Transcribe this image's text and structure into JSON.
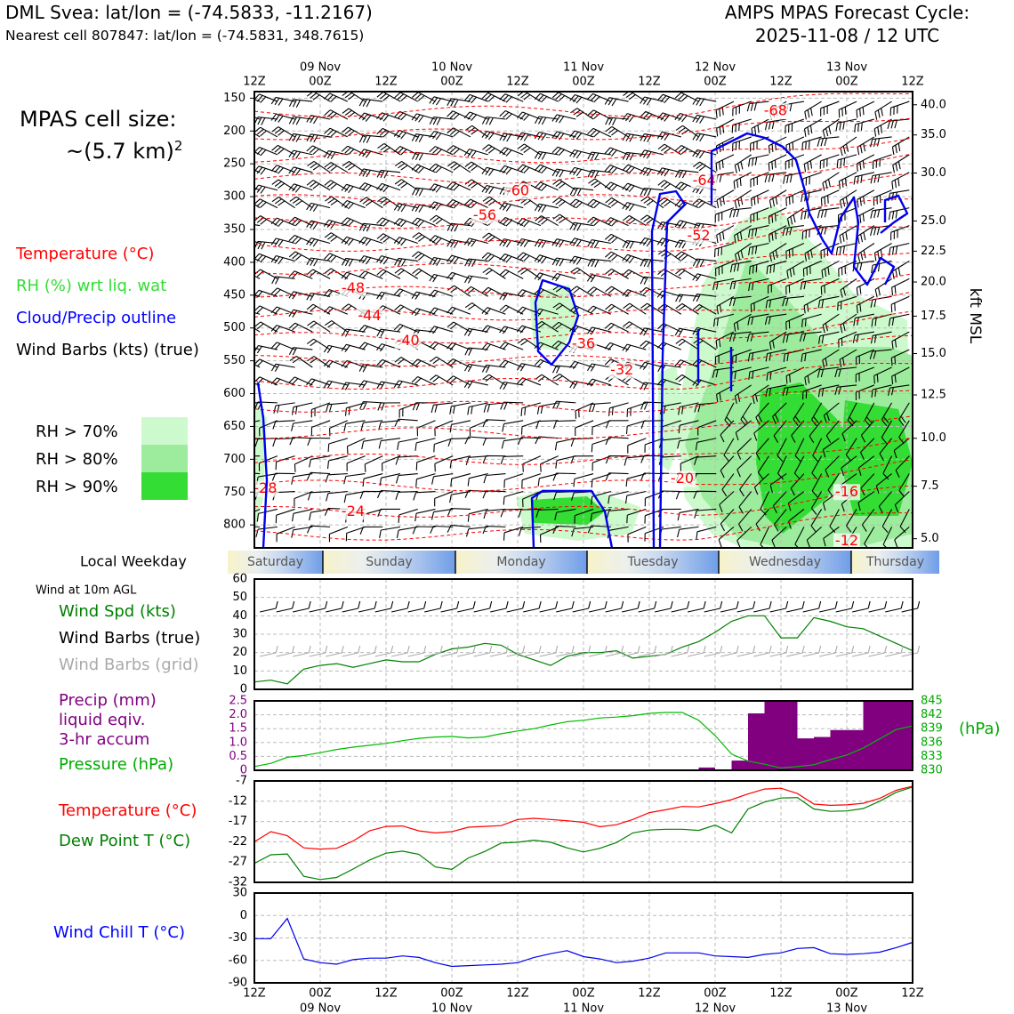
{
  "header": {
    "station_line": "DML Svea: lat/lon = (-74.5833, -11.2167)",
    "cell_line": "Nearest cell 807847: lat/lon = (-74.5831, 348.7615)",
    "forecast_line1": "AMPS MPAS Forecast Cycle:",
    "forecast_line2": "2025-11-08 / 12 UTC"
  },
  "left_panel": {
    "cell_size_line1": "MPAS cell size:",
    "cell_size_line2": "~(5.7 km)",
    "cell_size_exp": "2",
    "legend": [
      {
        "text": "Temperature (°C)",
        "color": "#ff0000"
      },
      {
        "text": "RH (%) wrt liq. wat",
        "color": "#33dd33"
      },
      {
        "text": "Cloud/Precip outline",
        "color": "#0000ff"
      },
      {
        "text": "Wind Barbs (kts) (true)",
        "color": "#000000"
      }
    ],
    "rh_legend": [
      {
        "text": "RH > 70%",
        "color": "#ccfacc"
      },
      {
        "text": "RH > 80%",
        "color": "#9deb9d"
      },
      {
        "text": "RH > 90%",
        "color": "#33dd33"
      }
    ]
  },
  "time_axis": {
    "date_labels": [
      "09 Nov",
      "10 Nov",
      "11 Nov",
      "12 Nov",
      "13 Nov"
    ],
    "hour_labels": [
      "12Z",
      "00Z",
      "12Z",
      "00Z",
      "12Z",
      "00Z",
      "12Z",
      "00Z",
      "12Z",
      "00Z",
      "12Z"
    ]
  },
  "weekday": {
    "title": "Local Weekday",
    "days": [
      "Saturday",
      "Sunday",
      "Monday",
      "Tuesday",
      "Wednesday",
      "Thursday"
    ]
  },
  "wind_panel": {
    "header": "Wind at 10m AGL",
    "legend": [
      {
        "text": "Wind Spd (kts)",
        "color": "#008000"
      },
      {
        "text": "Wind Barbs (true)",
        "color": "#000000"
      },
      {
        "text": "Wind Barbs (grid)",
        "color": "#aaaaaa"
      }
    ]
  },
  "precip_panel": {
    "legend": [
      {
        "text": "Precip (mm)",
        "color": "#800080"
      },
      {
        "text": "liquid eqiv.",
        "color": "#800080"
      },
      {
        "text": "3-hr accum",
        "color": "#800080"
      },
      {
        "text": "Pressure (hPa)",
        "color": "#00aa00"
      }
    ],
    "right_unit": "(hPa)"
  },
  "temp_panel": {
    "legend": [
      {
        "text": "Temperature (°C)",
        "color": "#ff0000"
      },
      {
        "text": "Dew Point T (°C)",
        "color": "#008000"
      }
    ]
  },
  "chill_panel": {
    "legend": [
      {
        "text": "Wind Chill T (°C)",
        "color": "#0000ff"
      }
    ]
  },
  "chart_data": [
    {
      "type": "heatmap",
      "name": "time-height cross section",
      "x_hours_from_start": [
        0,
        120
      ],
      "y_pressure_ticks": [
        150,
        200,
        250,
        300,
        350,
        400,
        450,
        500,
        550,
        600,
        650,
        700,
        750,
        800
      ],
      "ylim": [
        140,
        835
      ],
      "right_ticks": [
        "40.0",
        "35.0",
        "30.0",
        "25.0",
        "22.5",
        "20.0",
        "17.5",
        "15.0",
        "12.5",
        "10.0",
        "7.5",
        "5.0"
      ],
      "right_tick_pressures": [
        160,
        206,
        264,
        337,
        383,
        430,
        482,
        539,
        602,
        668,
        741,
        821
      ],
      "ylabel_right": "kft MSL",
      "temperature_labels": [
        {
          "text": "-68",
          "hour": 95,
          "p": 170
        },
        {
          "text": "-64",
          "hour": 82,
          "p": 276
        },
        {
          "text": "-60",
          "hour": 48,
          "p": 292
        },
        {
          "text": "-56",
          "hour": 42,
          "p": 329
        },
        {
          "text": "-52",
          "hour": 81,
          "p": 360
        },
        {
          "text": "-48",
          "hour": 18,
          "p": 440
        },
        {
          "text": "-44",
          "hour": 21,
          "p": 482
        },
        {
          "text": "-40",
          "hour": 28,
          "p": 520
        },
        {
          "text": "-36",
          "hour": 60,
          "p": 525
        },
        {
          "text": "-32",
          "hour": 67,
          "p": 565
        },
        {
          "text": "-28",
          "hour": 2,
          "p": 745
        },
        {
          "text": "-24",
          "hour": 18,
          "p": 780
        },
        {
          "text": "-20",
          "hour": 78,
          "p": 730
        },
        {
          "text": "-16",
          "hour": 108,
          "p": 750
        },
        {
          "text": "-12",
          "hour": 108,
          "p": 825
        }
      ]
    },
    {
      "type": "line",
      "name": "10m wind speed",
      "ylim": [
        0,
        60
      ],
      "y_ticks": [
        0,
        10,
        20,
        30,
        40,
        50,
        60
      ],
      "x_hours": [
        0,
        3,
        6,
        9,
        12,
        15,
        18,
        21,
        24,
        27,
        30,
        33,
        36,
        39,
        42,
        45,
        48,
        51,
        54,
        57,
        60,
        63,
        66,
        69,
        72,
        75,
        78,
        81,
        84,
        87,
        90,
        93,
        96,
        99,
        102,
        105,
        108,
        111,
        114,
        117,
        120
      ],
      "values": [
        4,
        5,
        3,
        11,
        13,
        14,
        12,
        14,
        16,
        15,
        15,
        19,
        22,
        23,
        25,
        24,
        19,
        16,
        13,
        18,
        20,
        20,
        21,
        17,
        18,
        19,
        23,
        26,
        31,
        37,
        40,
        40,
        28,
        28,
        39,
        37,
        34,
        33,
        29,
        25,
        21
      ]
    },
    {
      "type": "bar",
      "name": "3-hr precip",
      "ylim": [
        0,
        2.5
      ],
      "y_ticks": [
        0,
        0.5,
        1.0,
        1.5,
        2.0,
        2.5
      ],
      "bars": [
        {
          "start": 81,
          "end": 84,
          "value": 0.1
        },
        {
          "start": 87,
          "end": 90,
          "value": 0.35
        },
        {
          "start": 90,
          "end": 93,
          "value": 2.05
        },
        {
          "start": 93,
          "end": 99,
          "value": 2.5
        },
        {
          "start": 99,
          "end": 102,
          "value": 1.15
        },
        {
          "start": 102,
          "end": 105,
          "value": 1.2
        },
        {
          "start": 105,
          "end": 111,
          "value": 1.45
        },
        {
          "start": 111,
          "end": 120,
          "value": 2.5
        }
      ]
    },
    {
      "type": "line",
      "name": "surface pressure",
      "ylim": [
        830,
        845
      ],
      "y_ticks": [
        830,
        833,
        836,
        839,
        842,
        845
      ],
      "x_hours": [
        0,
        3,
        6,
        9,
        12,
        15,
        18,
        21,
        24,
        27,
        30,
        33,
        36,
        39,
        42,
        45,
        48,
        51,
        54,
        57,
        60,
        63,
        66,
        69,
        72,
        75,
        78,
        81,
        84,
        87,
        90,
        93,
        96,
        99,
        102,
        105,
        108,
        111,
        114,
        117,
        120
      ],
      "values": [
        830.8,
        831.5,
        832.8,
        833.2,
        833.8,
        834.5,
        835.0,
        835.4,
        835.8,
        836.4,
        836.9,
        837.2,
        837.3,
        837.0,
        837.2,
        837.9,
        838.5,
        839.0,
        839.8,
        840.5,
        840.8,
        841.3,
        841.5,
        841.8,
        842.3,
        842.5,
        842.5,
        840.8,
        837.5,
        833.5,
        832.0,
        831.3,
        830.5,
        830.8,
        831.2,
        832.3,
        833.3,
        834.8,
        836.8,
        838.8,
        839.6
      ]
    },
    {
      "type": "line",
      "name": "temperature and dew point",
      "ylim": [
        -32,
        -7
      ],
      "y_ticks": [
        -32,
        -27,
        -22,
        -17,
        -12,
        -7
      ],
      "x_hours": [
        0,
        3,
        6,
        9,
        12,
        15,
        18,
        21,
        24,
        27,
        30,
        33,
        36,
        39,
        42,
        45,
        48,
        51,
        54,
        57,
        60,
        63,
        66,
        69,
        72,
        75,
        78,
        81,
        84,
        87,
        90,
        93,
        96,
        99,
        102,
        105,
        108,
        111,
        114,
        117,
        120
      ],
      "series": [
        {
          "name": "Temperature (°C)",
          "color": "#ff0000",
          "values": [
            -22.0,
            -19.5,
            -20.5,
            -23.5,
            -23.8,
            -23.6,
            -21.8,
            -19.3,
            -18.2,
            -18.1,
            -19.3,
            -19.8,
            -19.5,
            -18.4,
            -18.2,
            -18.0,
            -16.5,
            -16.2,
            -16.5,
            -16.8,
            -17.2,
            -18.3,
            -17.8,
            -16.5,
            -14.8,
            -14.1,
            -13.3,
            -13.4,
            -12.6,
            -11.6,
            -10.2,
            -9.0,
            -8.8,
            -10.1,
            -12.7,
            -13.0,
            -12.9,
            -12.5,
            -11.3,
            -9.3,
            -8.3
          ]
        },
        {
          "name": "Dew Point T (°C)",
          "color": "#008000",
          "values": [
            -27.3,
            -25.2,
            -25.0,
            -30.5,
            -31.3,
            -30.8,
            -28.7,
            -26.5,
            -24.8,
            -24.3,
            -25.1,
            -28.2,
            -28.8,
            -26.0,
            -24.4,
            -22.3,
            -22.1,
            -21.6,
            -22.1,
            -23.5,
            -24.5,
            -23.6,
            -22.2,
            -19.8,
            -19.1,
            -18.9,
            -18.9,
            -19.2,
            -17.9,
            -19.8,
            -13.9,
            -12.2,
            -11.2,
            -11.1,
            -13.9,
            -14.5,
            -14.4,
            -13.8,
            -12.0,
            -9.8,
            -8.5
          ]
        }
      ]
    },
    {
      "type": "line",
      "name": "wind chill",
      "ylim": [
        -90,
        30
      ],
      "y_ticks": [
        -90,
        -60,
        -30,
        0,
        30
      ],
      "x_hours": [
        0,
        3,
        6,
        9,
        12,
        15,
        18,
        21,
        24,
        27,
        30,
        33,
        36,
        39,
        42,
        45,
        48,
        51,
        54,
        57,
        60,
        63,
        66,
        69,
        72,
        75,
        78,
        81,
        84,
        87,
        90,
        93,
        96,
        99,
        102,
        105,
        108,
        111,
        114,
        117,
        120
      ],
      "values": [
        -31,
        -31,
        -4,
        -58,
        -63,
        -65,
        -59,
        -57,
        -57,
        -54,
        -56,
        -63,
        -68,
        -67,
        -66,
        -65,
        -63,
        -56,
        -51,
        -47,
        -55,
        -58,
        -63,
        -61,
        -57,
        -50,
        -50,
        -50,
        -54,
        -55,
        -56,
        -52,
        -50,
        -44,
        -43,
        -51,
        -52,
        -51,
        -49,
        -43,
        -36
      ]
    }
  ]
}
